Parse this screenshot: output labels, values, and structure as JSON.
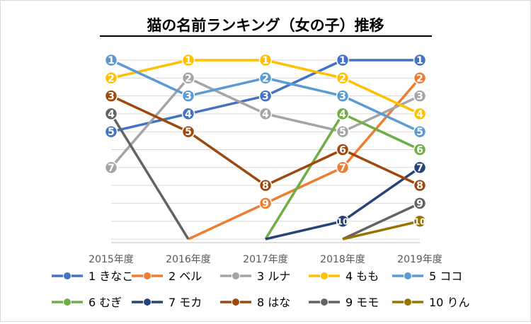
{
  "chart_data": {
    "type": "line",
    "title": "猫の名前ランキング（女の子）推移",
    "xlabel": "",
    "ylabel": "",
    "categories": [
      "2015年度",
      "2016年度",
      "2017年度",
      "2018年度",
      "2019年度"
    ],
    "ylim": [
      1,
      11
    ],
    "y_inverted": true,
    "grid": true,
    "legend_position": "bottom",
    "series": [
      {
        "name": "1 きなこ",
        "color": "#4472c4",
        "values": [
          5,
          4,
          3,
          1,
          1
        ],
        "labels": [
          "5",
          "4",
          "3",
          "1",
          "1"
        ]
      },
      {
        "name": "2 ベル",
        "color": "#ed7d31",
        "values": [
          null,
          11,
          9,
          7,
          2
        ],
        "labels": [
          "",
          "",
          "9",
          "7",
          "2"
        ]
      },
      {
        "name": "3 ルナ",
        "color": "#a5a5a5",
        "values": [
          7,
          2,
          4,
          5,
          3
        ],
        "labels": [
          "7",
          "2",
          "4",
          "5",
          "3"
        ]
      },
      {
        "name": "4 もも",
        "color": "#ffc000",
        "values": [
          2,
          1,
          1,
          2,
          4
        ],
        "labels": [
          "2",
          "1",
          "1",
          "2",
          "4"
        ]
      },
      {
        "name": "5 ココ",
        "color": "#5b9bd5",
        "values": [
          1,
          3,
          2,
          3,
          5
        ],
        "labels": [
          "1",
          "3",
          "2",
          "3",
          "5"
        ]
      },
      {
        "name": "6 むぎ",
        "color": "#70ad47",
        "values": [
          null,
          null,
          11,
          4,
          6
        ],
        "labels": [
          "",
          "",
          "",
          "4",
          "6"
        ]
      },
      {
        "name": "7 モカ",
        "color": "#264478",
        "values": [
          null,
          null,
          11,
          10,
          7
        ],
        "labels": [
          "",
          "",
          "",
          "10",
          "7"
        ]
      },
      {
        "name": "8 はな",
        "color": "#9e480e",
        "values": [
          3,
          5,
          8,
          6,
          8
        ],
        "labels": [
          "3",
          "5",
          "8",
          "6",
          "8"
        ]
      },
      {
        "name": "9 モモ",
        "color": "#636363",
        "values": [
          4,
          11,
          null,
          11,
          9
        ],
        "labels": [
          "4",
          "",
          "",
          "",
          "9"
        ]
      },
      {
        "name": "10 りん",
        "color": "#997300",
        "values": [
          null,
          null,
          null,
          11,
          10
        ],
        "labels": [
          "",
          "",
          "",
          "",
          "10"
        ]
      }
    ]
  }
}
